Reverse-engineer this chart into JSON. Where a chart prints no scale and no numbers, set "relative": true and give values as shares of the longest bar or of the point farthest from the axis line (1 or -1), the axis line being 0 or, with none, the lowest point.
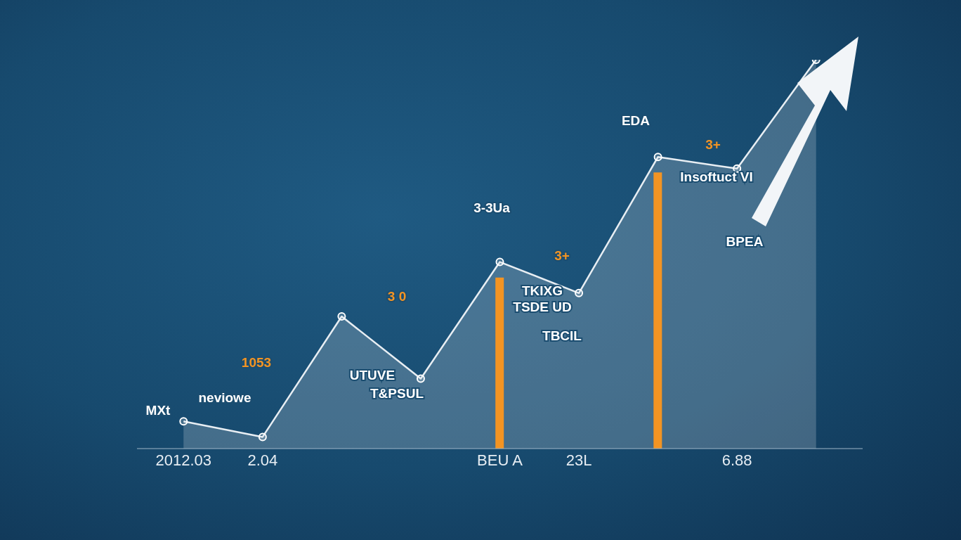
{
  "chart_data": {
    "type": "area",
    "relative": true,
    "marker": "circle",
    "categories": [
      "2012.03",
      "2.04",
      null,
      null,
      "BEU A",
      "23L",
      null,
      "6.88",
      null
    ],
    "series": [
      {
        "color": "#e8eef3",
        "values": [
          0.07,
          0.03,
          0.34,
          0.18,
          0.48,
          0.4,
          0.75,
          0.72,
          1
        ]
      },
      {
        "type": "bar",
        "color": "#f39423",
        "values": [
          null,
          null,
          null,
          null,
          0.44,
          null,
          0.71,
          null,
          null
        ]
      }
    ],
    "annotations": [
      "MXt",
      "1053",
      "neviowe",
      "3 0",
      "UTUVE",
      "T&PSUL",
      "3-3Ua",
      "3+",
      "TKIXG",
      "TSDE UD",
      "TBCIL",
      "EDA",
      "3+",
      "Insoftuct VI",
      "BPEA"
    ]
  }
}
